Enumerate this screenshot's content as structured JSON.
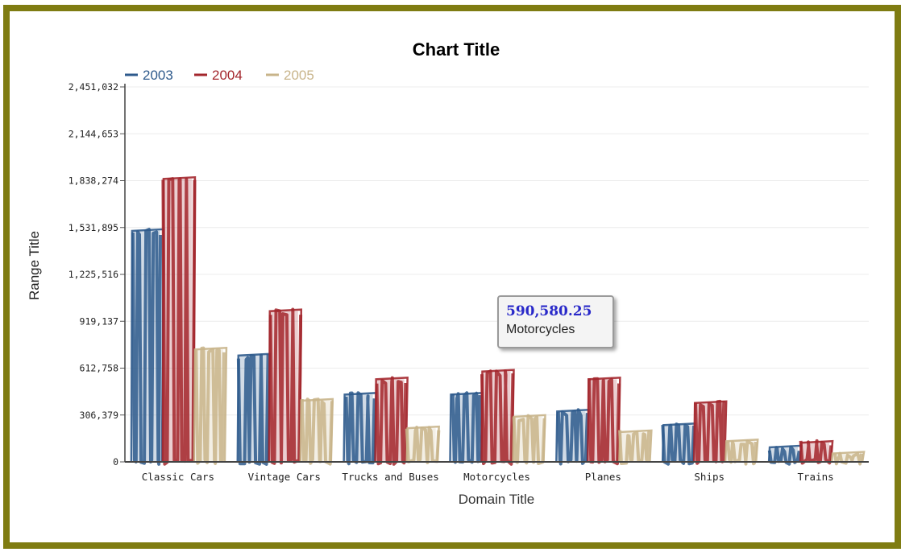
{
  "chart_data": {
    "type": "bar",
    "title": "Chart Title",
    "xlabel": "Domain Title",
    "ylabel": "Range Title",
    "categories": [
      "Classic Cars",
      "Vintage Cars",
      "Trucks and Buses",
      "Motorcycles",
      "Planes",
      "Ships",
      "Trains"
    ],
    "series": [
      {
        "name": "2003",
        "color": "#2e5a8c",
        "values": [
          1510000,
          695000,
          440000,
          440000,
          330000,
          240000,
          95000
        ]
      },
      {
        "name": "2004",
        "color": "#a3262c",
        "values": [
          1850000,
          985000,
          540000,
          590580.25,
          540000,
          385000,
          125000
        ]
      },
      {
        "name": "2005",
        "color": "#c8b48a",
        "values": [
          735000,
          400000,
          220000,
          295000,
          195000,
          135000,
          55000
        ]
      }
    ],
    "ylim": [
      0,
      2451032
    ],
    "yticks": [
      "0",
      "306,379",
      "612,758",
      "919,137",
      "1,225,516",
      "1,531,895",
      "1,838,274",
      "2,144,653",
      "2,451,032"
    ],
    "grid": true,
    "legend_position": "top-left",
    "tooltip": {
      "value": "590,580.25",
      "label": "Motorcycles"
    }
  }
}
